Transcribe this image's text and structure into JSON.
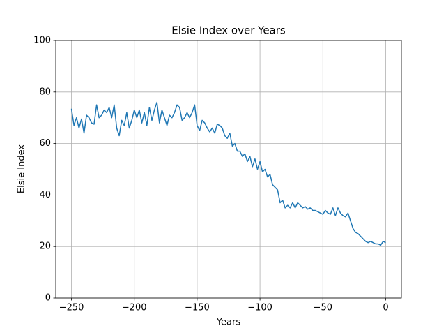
{
  "chart_data": {
    "type": "line",
    "title": "Elsie Index over Years",
    "xlabel": "Years",
    "ylabel": "Elsie Index",
    "x": [
      -250,
      -248,
      -246,
      -244,
      -242,
      -240,
      -238,
      -236,
      -234,
      -232,
      -230,
      -228,
      -226,
      -224,
      -222,
      -220,
      -218,
      -216,
      -214,
      -212,
      -210,
      -208,
      -206,
      -204,
      -202,
      -200,
      -198,
      -196,
      -194,
      -192,
      -190,
      -188,
      -186,
      -184,
      -182,
      -180,
      -178,
      -176,
      -174,
      -172,
      -170,
      -168,
      -166,
      -164,
      -162,
      -160,
      -158,
      -156,
      -154,
      -152,
      -150,
      -148,
      -146,
      -144,
      -142,
      -140,
      -138,
      -136,
      -134,
      -132,
      -130,
      -128,
      -126,
      -124,
      -122,
      -120,
      -118,
      -116,
      -114,
      -112,
      -110,
      -108,
      -106,
      -104,
      -102,
      -100,
      -98,
      -96,
      -94,
      -92,
      -90,
      -88,
      -86,
      -84,
      -82,
      -80,
      -78,
      -76,
      -74,
      -72,
      -70,
      -68,
      -66,
      -64,
      -62,
      -60,
      -58,
      -56,
      -54,
      -52,
      -50,
      -48,
      -46,
      -44,
      -42,
      -40,
      -38,
      -36,
      -34,
      -32,
      -30,
      -28,
      -26,
      -24,
      -22,
      -20,
      -18,
      -16,
      -14,
      -12,
      -10,
      -8,
      -6,
      -4,
      -2,
      0
    ],
    "series": [
      {
        "name": "Elsie Index",
        "color": "#1f77b4",
        "values": [
          73.5,
          67,
          70,
          66,
          69.5,
          64,
          71,
          70,
          68,
          67.5,
          75,
          70,
          71,
          73,
          72,
          74,
          70,
          75,
          66,
          63,
          69,
          67,
          72,
          66,
          69,
          73,
          70,
          73,
          68,
          72,
          67,
          74,
          69,
          73,
          76,
          68,
          73,
          70,
          67,
          71,
          70,
          72,
          75,
          74,
          69,
          70,
          72,
          70,
          72,
          75,
          67,
          65,
          69,
          68,
          66,
          64.5,
          66,
          64,
          67.5,
          67,
          66,
          63,
          62,
          64,
          59,
          60,
          57,
          57,
          55,
          56,
          53,
          55,
          51,
          54,
          50,
          53,
          49,
          50,
          47,
          48,
          44,
          43,
          42,
          37,
          38,
          35,
          36,
          35,
          37,
          35,
          37,
          36,
          35,
          35.5,
          34.5,
          35,
          34,
          34,
          33.5,
          33,
          32.5,
          34,
          33,
          32.5,
          35,
          32,
          35,
          33,
          32,
          31.5,
          33,
          30,
          27,
          25.5,
          25,
          24,
          23,
          22,
          21.5,
          22,
          21.5,
          21,
          21,
          20.5,
          22,
          21.5
        ]
      }
    ],
    "xlim": [
      -262.5,
      12.5
    ],
    "ylim": [
      0,
      100
    ],
    "xticks": [
      {
        "value": -250,
        "label": "−250"
      },
      {
        "value": -200,
        "label": "−200"
      },
      {
        "value": -150,
        "label": "−150"
      },
      {
        "value": -100,
        "label": "−100"
      },
      {
        "value": -50,
        "label": "−50"
      },
      0
    ],
    "yticks": [
      0,
      20,
      40,
      60,
      80,
      100
    ],
    "grid": true
  }
}
